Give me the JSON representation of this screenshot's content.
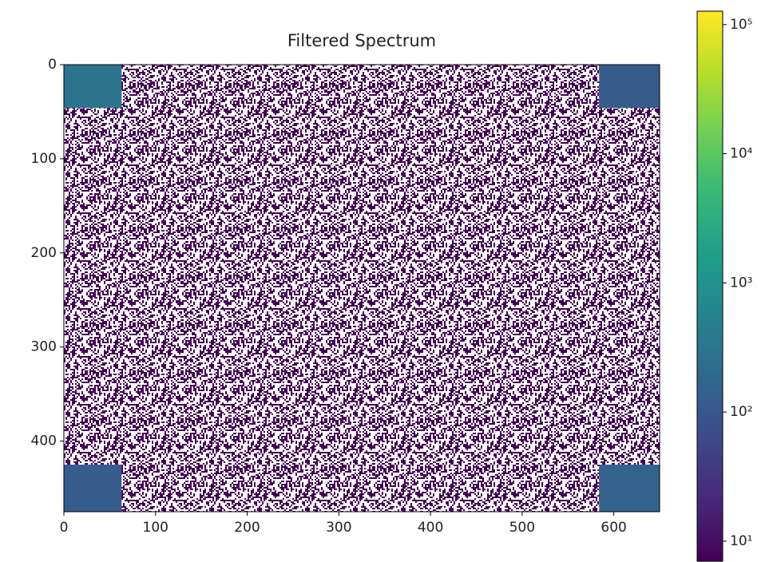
{
  "chart_data": {
    "type": "heatmap",
    "title": "Filtered Spectrum",
    "xlim": [
      0,
      650
    ],
    "xticks": [
      0,
      100,
      200,
      300,
      400,
      500,
      600
    ],
    "ylim": [
      475,
      0
    ],
    "yticks": [
      0,
      100,
      200,
      300,
      400
    ],
    "colormap": "viridis",
    "color_scale": "log",
    "clim": [
      7,
      127000
    ],
    "cticks": [
      {
        "value": 10,
        "label": "10¹"
      },
      {
        "value": 100,
        "label": "10²"
      },
      {
        "value": 1000,
        "label": "10³"
      },
      {
        "value": 10000,
        "label": "10⁴"
      },
      {
        "value": 100000,
        "label": "10⁵"
      }
    ],
    "speckle_value": 7,
    "regions": [
      {
        "x": [
          0,
          63
        ],
        "y": [
          0,
          46
        ],
        "value": 300
      },
      {
        "x": [
          584,
          650
        ],
        "y": [
          0,
          46
        ],
        "value": 120
      },
      {
        "x": [
          0,
          63
        ],
        "y": [
          425,
          475
        ],
        "value": 120
      },
      {
        "x": [
          584,
          650
        ],
        "y": [
          425,
          475
        ],
        "value": 150
      }
    ]
  }
}
